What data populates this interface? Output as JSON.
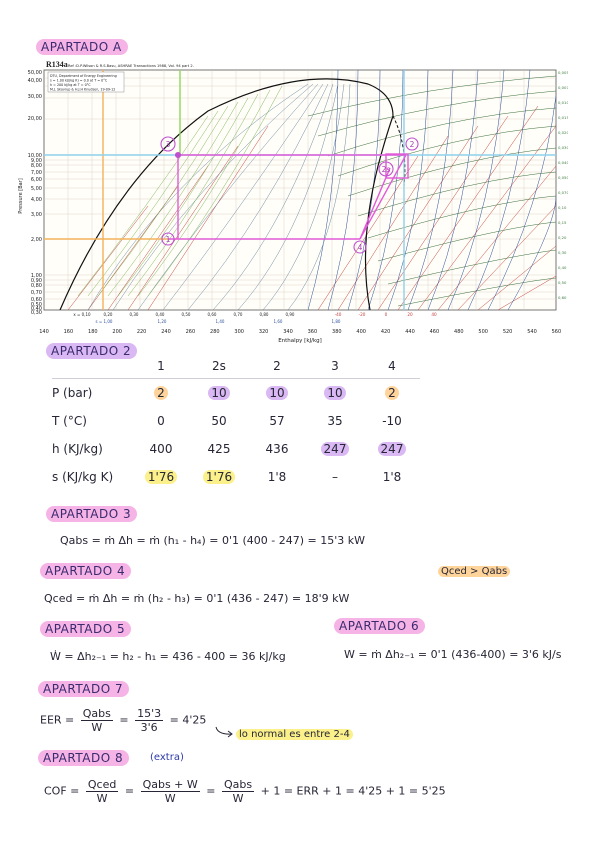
{
  "sections": {
    "a": "APARTADO A",
    "s2": "APARTADO 2",
    "s3": "APARTADO 3",
    "s4": "APARTADO 4",
    "s5": "APARTADO 5",
    "s6": "APARTADO 6",
    "s7": "APARTADO 7",
    "s8": "APARTADO 8",
    "extra": "(extra)"
  },
  "diagram": {
    "title": "R134a",
    "ref": "Ref :D.P.Wilson & R.S.Basu, ASHRAE Transactions 1988, Vol. 94 part 2.",
    "info": [
      "DTU, Department of Energy Engineering",
      "s = 1.00 kJ/(kg K) = 0.0 at T = 0°C",
      "h = 200 kJ/kg at T = 0°C",
      "M.J. Skovrup & H.J.H Knudsen, 19-09-12"
    ],
    "ylabel": "Pressure [Bar]",
    "xlabel": "Enthalpy [kJ/kg]",
    "pressure_ticks": [
      "50,00",
      "40,00",
      "30,00",
      "20,00",
      "10,00",
      "9,00",
      "8,00",
      "7,00",
      "6,00",
      "5,00",
      "4,00",
      "3,00",
      "2,00",
      "1,00",
      "0,90",
      "0,80",
      "0,70",
      "0,60",
      "0,50",
      "0,40",
      "0,30"
    ],
    "enthalpy_ticks": [
      "140",
      "160",
      "180",
      "200",
      "220",
      "240",
      "260",
      "280",
      "300",
      "320",
      "340",
      "360",
      "380",
      "400",
      "420",
      "440",
      "460",
      "480",
      "500",
      "520",
      "540",
      "560"
    ],
    "quality_labels": [
      "x = 0,10",
      "0,20",
      "0,30",
      "0,40",
      "0,50",
      "0,60",
      "0,70",
      "0,80",
      "0,90"
    ],
    "quality_bottom": [
      "s = 1,00",
      "1,20",
      "1,40",
      "1,60",
      "1,80"
    ],
    "temp_labels": [
      "-40",
      "-20",
      "0",
      "20",
      "40"
    ],
    "right_labels": [
      "0,0050",
      "0,0070",
      "0,010",
      "0,015",
      "0,020",
      "0,030",
      "0,040",
      "0,050",
      "0,070",
      "0,10",
      "0,15",
      "0,20",
      "0,30",
      "0,40",
      "0,50",
      "0,60"
    ],
    "point_labels": [
      "1",
      "2",
      "2s",
      "3",
      "4"
    ]
  },
  "table": {
    "headers": [
      "",
      "1",
      "2s",
      "2",
      "3",
      "4"
    ],
    "rows": [
      {
        "label": "P (bar)",
        "cells": [
          "2",
          "10",
          "10",
          "10",
          "2"
        ]
      },
      {
        "label": "T (°C)",
        "cells": [
          "0",
          "50",
          "57",
          "35",
          "-10"
        ]
      },
      {
        "label": "h (KJ/kg)",
        "cells": [
          "400",
          "425",
          "436",
          "247",
          "247"
        ]
      },
      {
        "label": "s (KJ/kg K)",
        "cells": [
          "1'76",
          "1'76",
          "1'8",
          "–",
          "1'8"
        ]
      }
    ]
  },
  "eq": {
    "qabs": "Qabs = ṁ Δh = ṁ (h₁ - h₄) = 0'1 (400 - 247) = 15'3 kW",
    "note_cmp": "Qced > Qabs",
    "qced": "Qced = ṁ Δh = ṁ (h₂ - h₃) = 0'1 (436 - 247) = 18'9 kW",
    "w5": "Ẇ = Δh₂₋₁ = h₂ - h₁ = 436 - 400 = 36 kJ/kg",
    "w6": "W = ṁ Δh₂₋₁ = 0'1 (436-400) = 3'6 kJ/s",
    "eer_lhs": "EER =",
    "eer_n1": "Qabs",
    "eer_d1": "W",
    "eer_eq": "=",
    "eer_n2": "15'3",
    "eer_d2": "3'6",
    "eer_res": "= 4'25",
    "eer_note": "lo normal es entre 2-4",
    "cop_lhs": "COF =",
    "cop_n1": "Qced",
    "cop_d1": "W",
    "cop_eq1": "=",
    "cop_n2": "Qabs + W",
    "cop_d2": "W",
    "cop_eq2": "=",
    "cop_n3": "Qabs",
    "cop_d3": "W",
    "cop_res": "+ 1 =  ERR + 1 =  4'25 + 1 = 5'25"
  }
}
